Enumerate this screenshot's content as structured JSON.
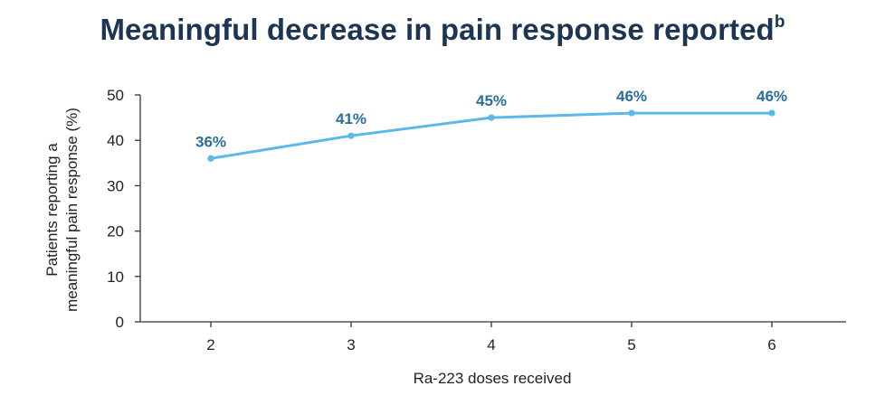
{
  "chart_data": {
    "type": "line",
    "title": "Meaningful decrease in pain response reported",
    "title_superscript": "b",
    "xlabel": "Ra-223 doses received",
    "ylabel_lines": [
      "Patients reporting a",
      "meaningful pain response (%)"
    ],
    "categories": [
      "2",
      "3",
      "4",
      "5",
      "6"
    ],
    "series": [
      {
        "values": [
          36,
          41,
          45,
          46,
          46
        ],
        "data_labels": [
          "36%",
          "41%",
          "45%",
          "46%",
          "46%"
        ],
        "color": "#5bb8ea"
      }
    ],
    "ylim": [
      0,
      50
    ],
    "yticks": [
      0,
      10,
      20,
      30,
      40,
      50
    ],
    "ytick_labels": [
      "0",
      "10",
      "20",
      "30",
      "40",
      "50"
    ],
    "grid": false,
    "label_color": "#2a6f9a",
    "title_color": "#1b3553"
  }
}
